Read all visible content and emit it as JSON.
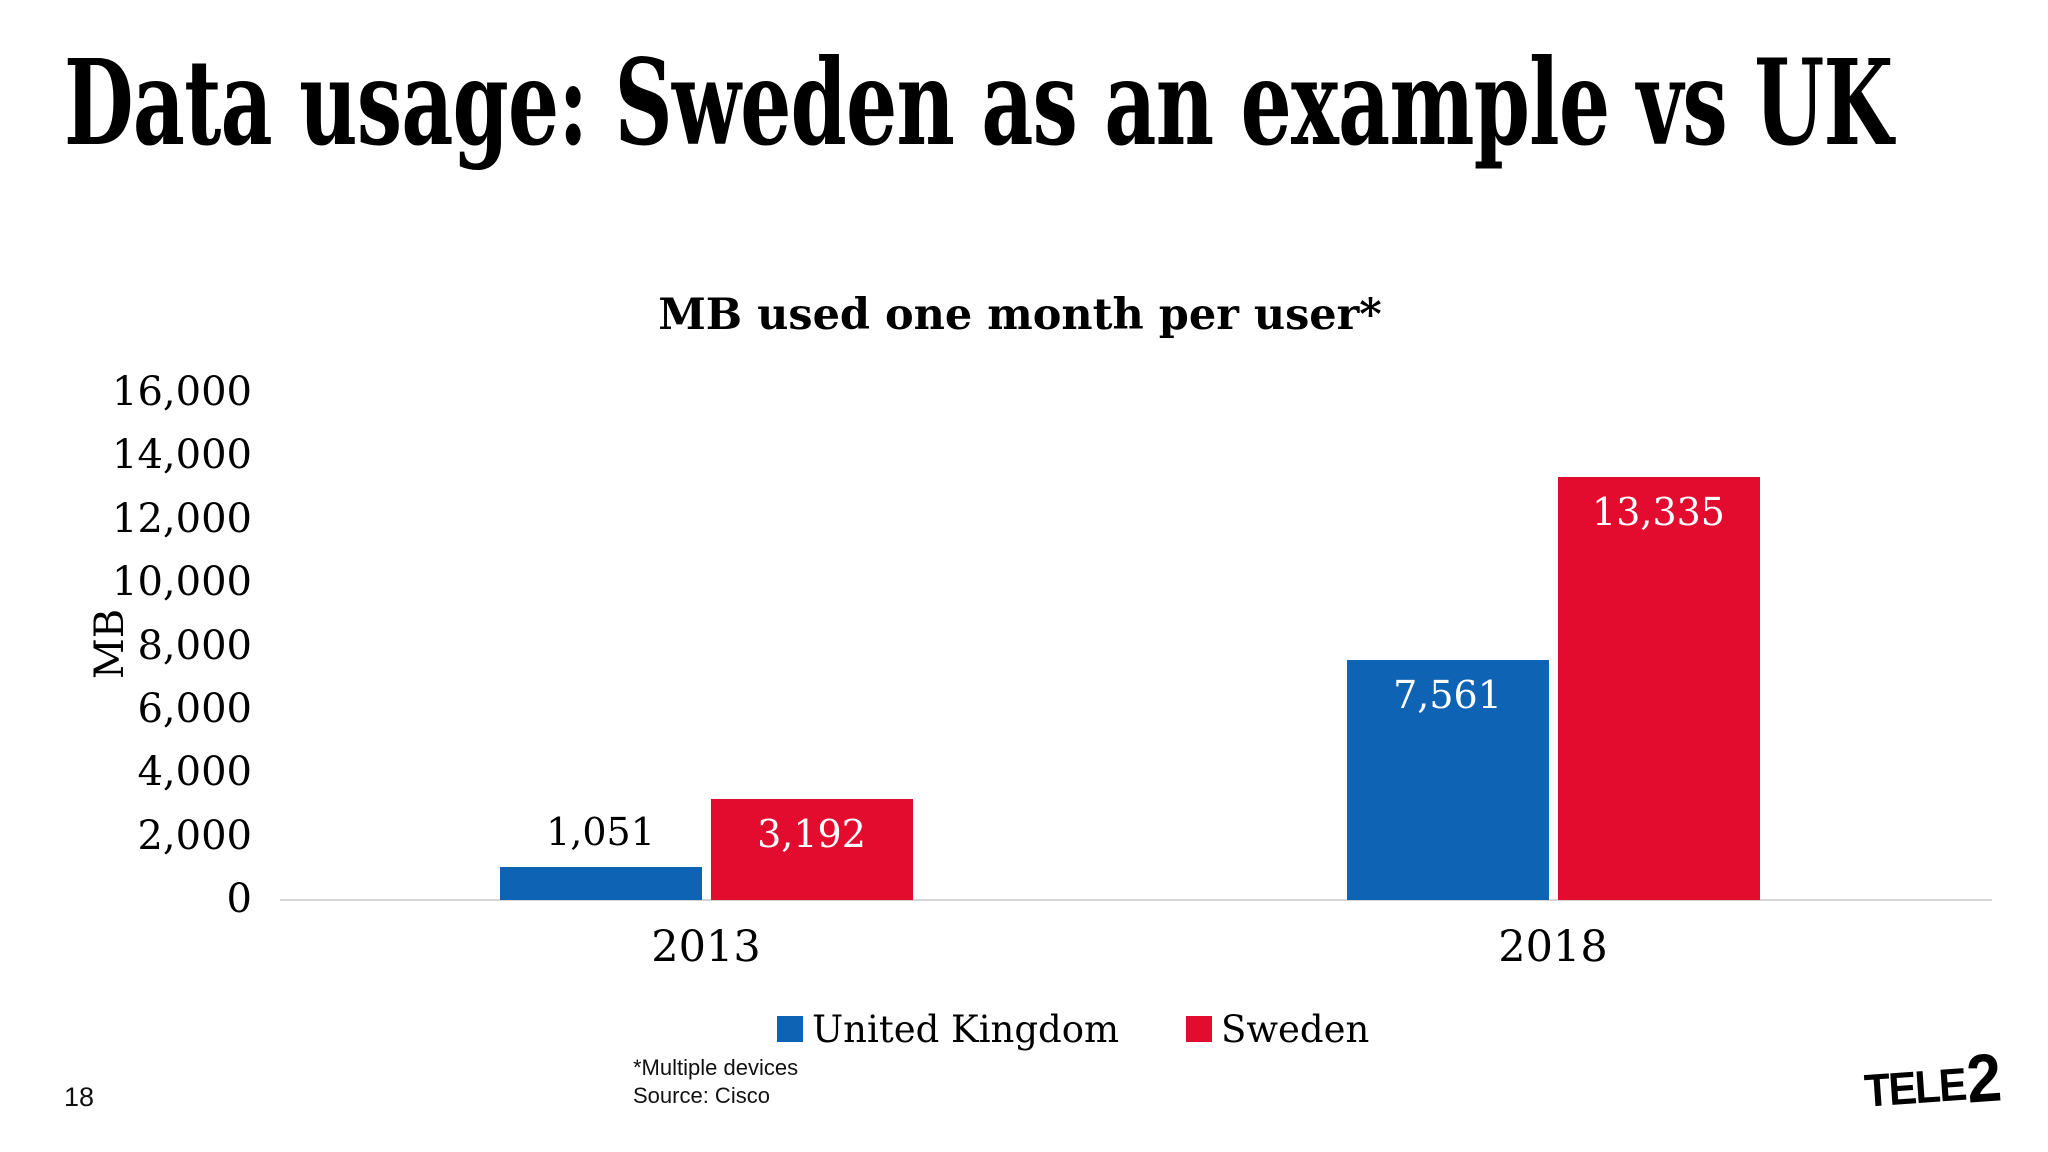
{
  "slide": {
    "title": "Data usage: Sweden as an example vs UK",
    "page_number": "18",
    "logo": {
      "tele": "TELE",
      "two": "2"
    }
  },
  "footnote": {
    "line1": "*Multiple devices",
    "line2": "Source: Cisco"
  },
  "chart_data": {
    "type": "bar",
    "title": "MB used one month per user*",
    "ylabel": "MB",
    "categories": [
      "2013",
      "2018"
    ],
    "series": [
      {
        "name": "United Kingdom",
        "color": "#0f63b5",
        "values": [
          1051,
          7561
        ],
        "data_labels": [
          "1,051",
          "7,561"
        ],
        "label_placement": [
          "above",
          "inside"
        ]
      },
      {
        "name": "Sweden",
        "color": "#e30c2e",
        "values": [
          3192,
          13335
        ],
        "data_labels": [
          "3,192",
          "13,335"
        ],
        "label_placement": [
          "inside",
          "inside"
        ]
      }
    ],
    "ylim": [
      0,
      16000
    ],
    "ytick_step": 2000,
    "ytick_labels": [
      "0",
      "2,000",
      "4,000",
      "6,000",
      "8,000",
      "10,000",
      "12,000",
      "14,000",
      "16,000"
    ],
    "grid": false,
    "legend_position": "bottom",
    "axis_line_color": "#d6d6d6",
    "data_label_inside_color": "#ffffff",
    "data_label_above_color": "#000000"
  }
}
